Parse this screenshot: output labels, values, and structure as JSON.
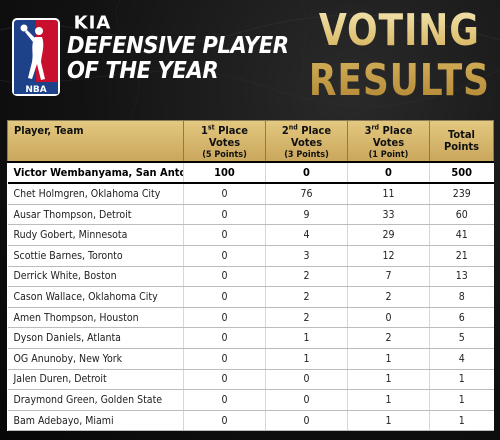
{
  "header": {
    "brand": "KIA",
    "logo_text": "NBA",
    "award_line1": "DEFENSIVE PLAYER",
    "award_line2": "OF THE YEAR",
    "results_line1": "VOTING",
    "results_line2": "RESULTS"
  },
  "colors": {
    "gold": "#d2b063",
    "header_bg": "#cfae66",
    "logo_blue": "#1d428a",
    "logo_red": "#c8102e"
  },
  "table": {
    "columns": [
      {
        "label": "Player, Team",
        "sub": ""
      },
      {
        "label": "1st Place Votes",
        "sub": "(5 Points)"
      },
      {
        "label": "2nd Place Votes",
        "sub": "(3 Points)"
      },
      {
        "label": "3rd Place Votes",
        "sub": "(1 Point)"
      },
      {
        "label": "Total Points",
        "sub": ""
      }
    ],
    "rows": [
      {
        "player": "Victor Wembanyama, San Antonio",
        "first": "100",
        "second": "0",
        "third": "0",
        "total": "500"
      },
      {
        "player": "Chet Holmgren, Oklahoma City",
        "first": "0",
        "second": "76",
        "third": "11",
        "total": "239"
      },
      {
        "player": "Ausar Thompson, Detroit",
        "first": "0",
        "second": "9",
        "third": "33",
        "total": "60"
      },
      {
        "player": "Rudy Gobert, Minnesota",
        "first": "0",
        "second": "4",
        "third": "29",
        "total": "41"
      },
      {
        "player": "Scottie Barnes, Toronto",
        "first": "0",
        "second": "3",
        "third": "12",
        "total": "21"
      },
      {
        "player": "Derrick White, Boston",
        "first": "0",
        "second": "2",
        "third": "7",
        "total": "13"
      },
      {
        "player": "Cason Wallace, Oklahoma City",
        "first": "0",
        "second": "2",
        "third": "2",
        "total": "8"
      },
      {
        "player": "Amen Thompson, Houston",
        "first": "0",
        "second": "2",
        "third": "0",
        "total": "6"
      },
      {
        "player": "Dyson Daniels, Atlanta",
        "first": "0",
        "second": "1",
        "third": "2",
        "total": "5"
      },
      {
        "player": "OG Anunoby, New York",
        "first": "0",
        "second": "1",
        "third": "1",
        "total": "4"
      },
      {
        "player": "Jalen Duren, Detroit",
        "first": "0",
        "second": "0",
        "third": "1",
        "total": "1"
      },
      {
        "player": "Draymond Green, Golden State",
        "first": "0",
        "second": "0",
        "third": "1",
        "total": "1"
      },
      {
        "player": "Bam Adebayo, Miami",
        "first": "0",
        "second": "0",
        "third": "1",
        "total": "1"
      }
    ]
  }
}
